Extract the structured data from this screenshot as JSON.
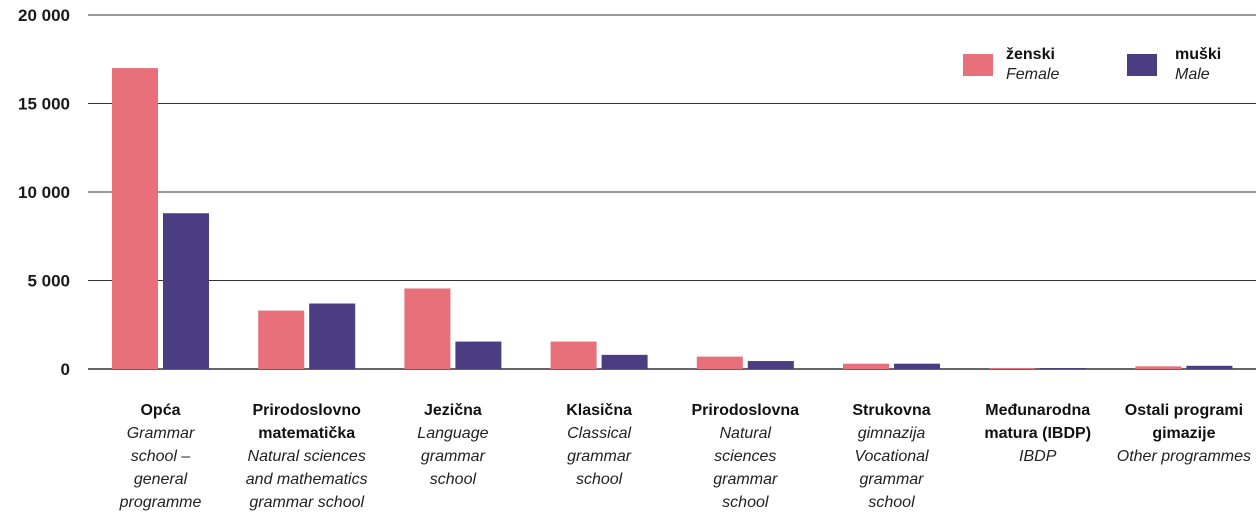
{
  "colors": {
    "female": "#e8707b",
    "male": "#4a3d82",
    "grid": "#333333"
  },
  "legend": [
    {
      "label": "ženski",
      "sublabel": "Female"
    },
    {
      "label": "muški",
      "sublabel": "Male"
    }
  ],
  "chart_data": {
    "type": "bar",
    "title": "",
    "xlabel": "",
    "ylabel": "",
    "ylim": [
      0,
      20000
    ],
    "yticks": [
      {
        "value": 0,
        "label": "0"
      },
      {
        "value": 5000,
        "label": "5 000"
      },
      {
        "value": 10000,
        "label": "10 000"
      },
      {
        "value": 15000,
        "label": "15 000"
      },
      {
        "value": 20000,
        "label": "20 000"
      }
    ],
    "grid": true,
    "legend_position": "top-right",
    "categories": [
      {
        "bold": [
          "Opća"
        ],
        "italic": [
          "Grammar",
          "school –",
          "general",
          "programme"
        ]
      },
      {
        "bold": [
          "Prirodoslovno",
          "matematička"
        ],
        "italic": [
          "Natural sciences",
          "and mathematics",
          "grammar school"
        ]
      },
      {
        "bold": [
          "Jezična"
        ],
        "italic": [
          "Language",
          "grammar",
          "school"
        ]
      },
      {
        "bold": [
          "Klasična"
        ],
        "italic": [
          "Classical",
          "grammar",
          "school"
        ]
      },
      {
        "bold": [
          "Prirodoslovna"
        ],
        "italic": [
          "Natural",
          "sciences",
          "grammar",
          "school"
        ]
      },
      {
        "bold": [
          "Strukovna"
        ],
        "italic": [
          "gimnazija",
          "Vocational",
          "grammar",
          "school"
        ]
      },
      {
        "bold": [
          "Međunarodna",
          "matura (IBDP)"
        ],
        "italic": [
          "IBDP"
        ]
      },
      {
        "bold": [
          "Ostali programi",
          "gimazije"
        ],
        "italic": [
          "Other programmes"
        ]
      }
    ],
    "series": [
      {
        "name": "ženski",
        "values": [
          17000,
          3300,
          4550,
          1550,
          700,
          300,
          20,
          150
        ]
      },
      {
        "name": "muški",
        "values": [
          8800,
          3700,
          1550,
          800,
          450,
          300,
          20,
          180
        ]
      }
    ]
  }
}
